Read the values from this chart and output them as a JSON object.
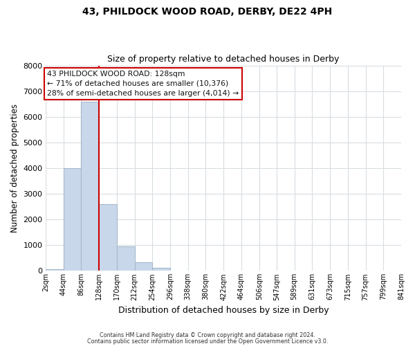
{
  "title1": "43, PHILDOCK WOOD ROAD, DERBY, DE22 4PH",
  "title2": "Size of property relative to detached houses in Derby",
  "xlabel": "Distribution of detached houses by size in Derby",
  "ylabel": "Number of detached properties",
  "bin_edges": [
    2,
    44,
    86,
    128,
    170,
    212,
    254,
    296,
    338,
    380,
    422,
    464,
    506,
    547,
    589,
    631,
    673,
    715,
    757,
    799,
    841
  ],
  "bar_heights": [
    60,
    4000,
    6600,
    2600,
    950,
    330,
    130,
    0,
    0,
    0,
    0,
    0,
    0,
    0,
    0,
    0,
    0,
    0,
    0,
    0
  ],
  "bar_color": "#c8d8ea",
  "bar_edgecolor": "#a8b8cc",
  "vline_x": 128,
  "vline_color": "#cc0000",
  "ylim": [
    0,
    8000
  ],
  "yticks": [
    0,
    1000,
    2000,
    3000,
    4000,
    5000,
    6000,
    7000,
    8000
  ],
  "annotation_box_text": "43 PHILDOCK WOOD ROAD: 128sqm\n← 71% of detached houses are smaller (10,376)\n28% of semi-detached houses are larger (4,014) →",
  "annotation_box_color": "#cc0000",
  "annotation_text_color": "#111111",
  "grid_color": "#d8dde2",
  "bg_color": "#ffffff",
  "footer1": "Contains HM Land Registry data © Crown copyright and database right 2024.",
  "footer2": "Contains public sector information licensed under the Open Government Licence v3.0."
}
